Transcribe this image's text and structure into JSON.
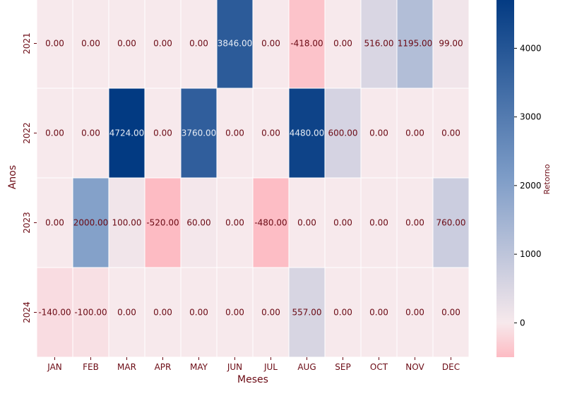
{
  "chart_data": {
    "type": "heatmap",
    "title": "",
    "xlabel": "Meses",
    "ylabel": "Anos",
    "colorbar_label": "Retorno",
    "colorbar_ticks": [
      0,
      1000,
      2000,
      3000,
      4000
    ],
    "vmin": -500,
    "vmax": 4724,
    "x_categories": [
      "JAN",
      "FEB",
      "MAR",
      "APR",
      "MAY",
      "JUN",
      "JUL",
      "AUG",
      "SEP",
      "OCT",
      "NOV",
      "DEC"
    ],
    "y_categories": [
      "2021",
      "2022",
      "2023",
      "2024"
    ],
    "values": [
      [
        0,
        0,
        0,
        0,
        0,
        3846,
        0,
        -418,
        0,
        516,
        1195,
        99
      ],
      [
        0,
        0,
        4724,
        0,
        3760,
        0,
        0,
        4480,
        600,
        0,
        0,
        0
      ],
      [
        0,
        2000,
        100,
        -520,
        60,
        0,
        -480,
        0,
        0,
        0,
        0,
        760
      ],
      [
        -140,
        -100,
        0,
        0,
        0,
        0,
        0,
        557,
        0,
        0,
        0,
        0
      ]
    ],
    "colors": {
      "negative": "#fdbbc3",
      "zero": "#f7e9ec",
      "mid": "#7d9cc7",
      "positive": "#023a82",
      "text_dark": "#6b0a14",
      "text_light": "#e6ecf5"
    }
  }
}
